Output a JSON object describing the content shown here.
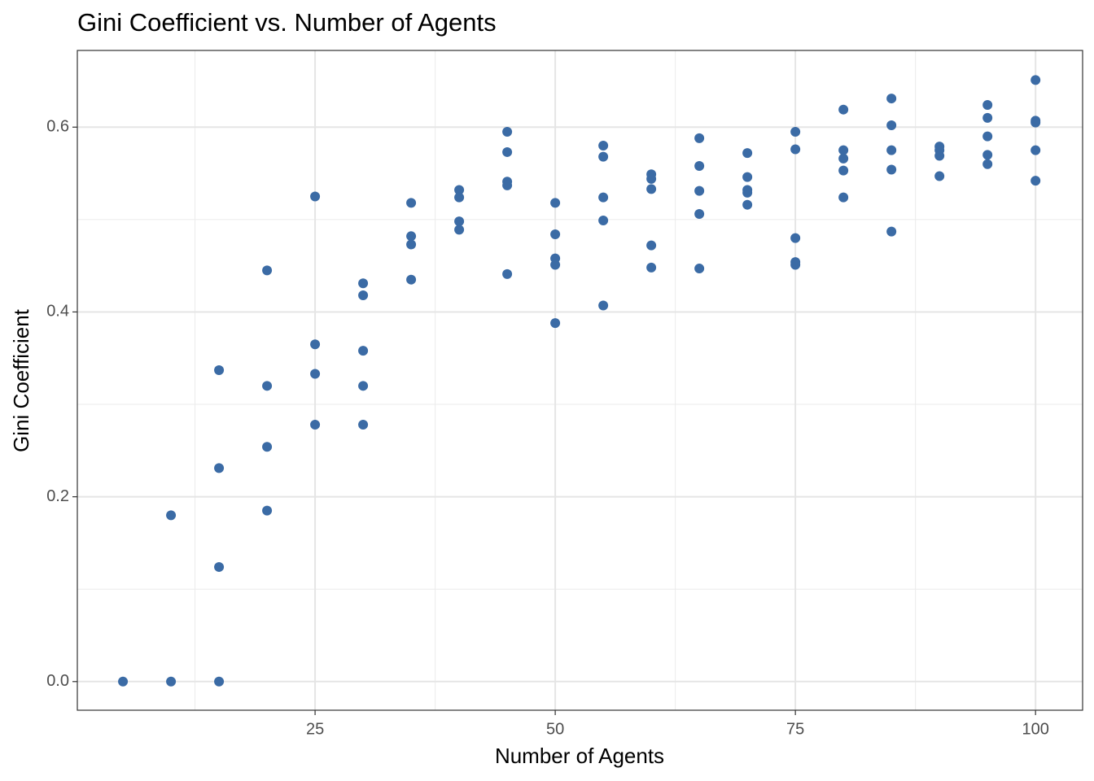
{
  "chart_data": {
    "type": "scatter",
    "title": "Gini Coefficient vs. Number of Agents",
    "xlabel": "Number of Agents",
    "ylabel": "Gini Coefficient",
    "series": [
      {
        "color": "#3b6ba5",
        "x": [
          5,
          10,
          10,
          15,
          15,
          15,
          15,
          20,
          20,
          20,
          20,
          25,
          25,
          25,
          25,
          30,
          30,
          30,
          30,
          30,
          35,
          35,
          35,
          35,
          40,
          40,
          40,
          40,
          45,
          45,
          45,
          45,
          45,
          50,
          50,
          50,
          50,
          50,
          55,
          55,
          55,
          55,
          55,
          60,
          60,
          60,
          60,
          60,
          65,
          65,
          65,
          65,
          65,
          70,
          70,
          70,
          70,
          70,
          75,
          75,
          75,
          75,
          75,
          80,
          80,
          80,
          80,
          80,
          85,
          85,
          85,
          85,
          85,
          90,
          90,
          90,
          90,
          95,
          95,
          95,
          95,
          95,
          100,
          100,
          100,
          100,
          100
        ],
        "values": [
          0,
          0.18,
          0,
          0.337,
          0.231,
          0.124,
          0,
          0.445,
          0.32,
          0.254,
          0.185,
          0.525,
          0.365,
          0.333,
          0.278,
          0.431,
          0.418,
          0.358,
          0.32,
          0.278,
          0.518,
          0.482,
          0.473,
          0.435,
          0.532,
          0.524,
          0.498,
          0.489,
          0.595,
          0.573,
          0.541,
          0.537,
          0.441,
          0.518,
          0.484,
          0.458,
          0.451,
          0.388,
          0.58,
          0.568,
          0.524,
          0.499,
          0.407,
          0.549,
          0.544,
          0.533,
          0.472,
          0.448,
          0.588,
          0.558,
          0.531,
          0.506,
          0.447,
          0.572,
          0.546,
          0.532,
          0.529,
          0.516,
          0.595,
          0.576,
          0.48,
          0.454,
          0.451,
          0.619,
          0.575,
          0.566,
          0.553,
          0.524,
          0.631,
          0.602,
          0.575,
          0.554,
          0.487,
          0.579,
          0.575,
          0.569,
          0.547,
          0.624,
          0.61,
          0.59,
          0.57,
          0.56,
          0.651,
          0.607,
          0.605,
          0.575,
          0.542
        ]
      }
    ],
    "xlim": [
      0.25,
      104.9
    ],
    "ylim": [
      -0.031,
      0.683
    ],
    "xticks": [
      25,
      50,
      75,
      100
    ],
    "yticks": [
      {
        "value": 0,
        "label": "0.0"
      },
      0.2,
      0.4,
      0.6
    ],
    "xminorticks": [
      12.5,
      37.5,
      62.5,
      87.5
    ],
    "yminorticks": [
      0.1,
      0.3,
      0.5
    ],
    "grid": true
  }
}
